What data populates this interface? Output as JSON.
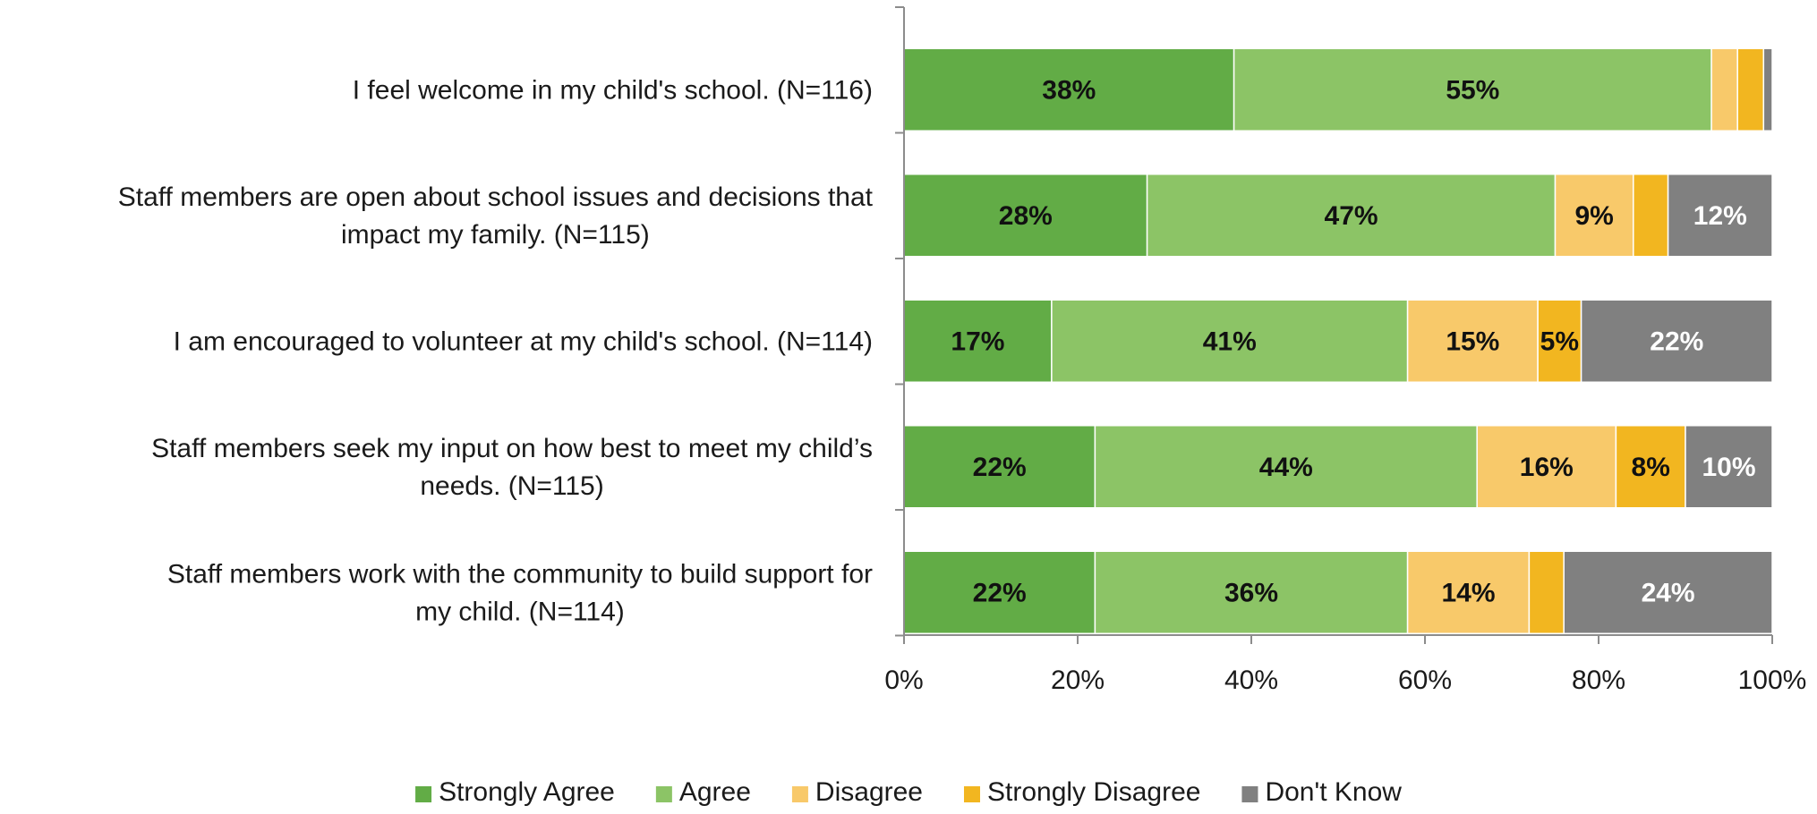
{
  "chart_data": {
    "type": "bar",
    "orientation": "horizontal",
    "stacked": true,
    "categories": [
      "I feel welcome in my child's school. (N=116)",
      "Staff members are open about school issues and decisions that impact my family. (N=115)",
      "I am encouraged to volunteer at my child's school. (N=114)",
      "Staff members seek my input on how best to meet my child’s needs. (N=115)",
      "Staff members work with the community to build support for my child. (N=114)"
    ],
    "category_lines": [
      [
        "I feel welcome in my child's school. (N=116)"
      ],
      [
        "Staff members are open about school issues and decisions that",
        "impact my family. (N=115)"
      ],
      [
        "I am encouraged to volunteer at my child's school. (N=114)"
      ],
      [
        "Staff members seek my input on how best to meet my child’s",
        "needs. (N=115)"
      ],
      [
        "Staff members work with the community to build support for",
        "my child. (N=114)"
      ]
    ],
    "series": [
      {
        "name": "Strongly Agree",
        "color": "#62ac46",
        "label_color": "#111111",
        "values": [
          38,
          28,
          17,
          22,
          22
        ],
        "labels": [
          "38%",
          "28%",
          "17%",
          "22%",
          "22%"
        ]
      },
      {
        "name": "Agree",
        "color": "#8cc466",
        "label_color": "#111111",
        "values": [
          55,
          47,
          41,
          44,
          36
        ],
        "labels": [
          "55%",
          "47%",
          "41%",
          "44%",
          "36%"
        ]
      },
      {
        "name": "Disagree",
        "color": "#f8c96a",
        "label_color": "#111111",
        "values": [
          3,
          9,
          15,
          16,
          14
        ],
        "labels": [
          "",
          "9%",
          "15%",
          "16%",
          "14%"
        ]
      },
      {
        "name": "Strongly Disagree",
        "color": "#f2b620",
        "label_color": "#111111",
        "values": [
          3,
          4,
          5,
          8,
          4
        ],
        "labels": [
          "",
          "",
          "5%",
          "8%",
          ""
        ]
      },
      {
        "name": "Don't Know",
        "color": "#808080",
        "label_color": "#ffffff",
        "values": [
          1,
          12,
          22,
          10,
          24
        ],
        "labels": [
          "",
          "12%",
          "22%",
          "10%",
          "24%"
        ]
      }
    ],
    "x_ticks": [
      "0%",
      "20%",
      "40%",
      "60%",
      "80%",
      "100%"
    ],
    "xlim": [
      0,
      100
    ],
    "title": "",
    "xlabel": "",
    "ylabel": "",
    "grid": false,
    "legend_position": "bottom"
  }
}
